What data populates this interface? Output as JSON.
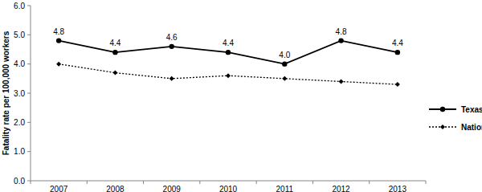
{
  "chart_data": {
    "type": "line",
    "y_label": "Fatality rate per 100,000 workers",
    "categories": [
      "2007",
      "2008",
      "2009",
      "2010",
      "2011",
      "2012",
      "2013"
    ],
    "series": [
      {
        "name": "Texas",
        "color": "#000000",
        "marker": "circle",
        "line_style": "solid",
        "data_labels": true,
        "values": [
          4.8,
          4.4,
          4.6,
          4.4,
          4.0,
          4.8,
          4.4
        ],
        "value_labels": [
          "4.8",
          "4.4",
          "4.6",
          "4.4",
          "4.0",
          "4.8",
          "4.4"
        ]
      },
      {
        "name": "National",
        "color": "#000000",
        "marker": "diamond",
        "line_style": "dotted",
        "values": [
          4.0,
          3.7,
          3.5,
          3.6,
          3.5,
          3.4,
          3.3
        ]
      }
    ],
    "ylim": [
      0,
      6
    ],
    "yticks": [
      {
        "value": 0,
        "label": "0.0"
      },
      {
        "value": 1,
        "label": "1.0"
      },
      {
        "value": 2,
        "label": "2.0"
      },
      {
        "value": 3,
        "label": "3.0"
      },
      {
        "value": 4,
        "label": "4.0"
      },
      {
        "value": 5,
        "label": "5.0"
      },
      {
        "value": 6,
        "label": "6.0"
      }
    ],
    "grid": false,
    "legend": "right"
  }
}
